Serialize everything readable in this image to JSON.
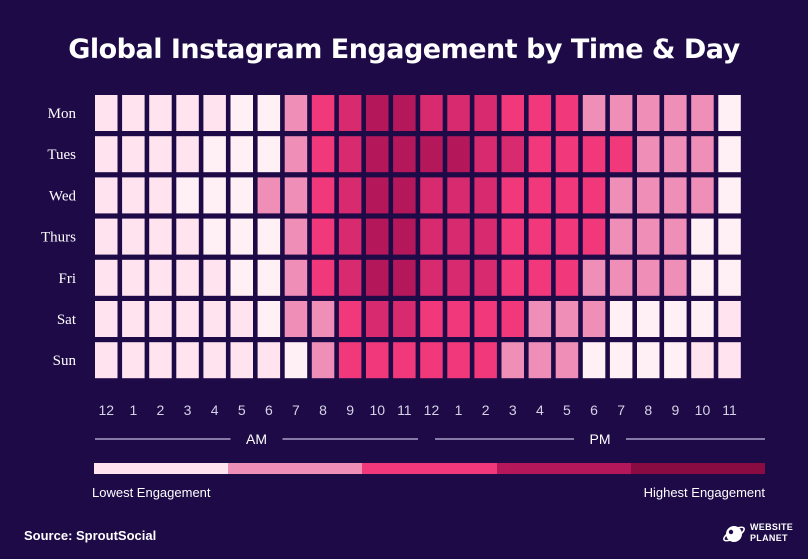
{
  "chart_data": {
    "type": "heatmap",
    "title": "Global Instagram Engagement by Time & Day",
    "rows": [
      "Mon",
      "Tues",
      "Wed",
      "Thurs",
      "Fri",
      "Sat",
      "Sun"
    ],
    "columns": [
      "12",
      "1",
      "2",
      "3",
      "4",
      "5",
      "6",
      "7",
      "8",
      "9",
      "10",
      "11",
      "12",
      "1",
      "2",
      "3",
      "4",
      "5",
      "6",
      "7",
      "8",
      "9",
      "10",
      "11"
    ],
    "period_labels": [
      "AM",
      "PM"
    ],
    "scale_colors": [
      "#ffe4f0",
      "#fff0f6",
      "#ef8fb8",
      "#f0387b",
      "#d82a6e",
      "#b5185a",
      "#8a0a42"
    ],
    "levels": [
      [
        0,
        0,
        0,
        0,
        0,
        1,
        1,
        2,
        3,
        4,
        5,
        5,
        4,
        4,
        4,
        3,
        3,
        3,
        2,
        2,
        2,
        2,
        2,
        1
      ],
      [
        0,
        0,
        0,
        0,
        1,
        1,
        1,
        2,
        3,
        4,
        5,
        5,
        5,
        5,
        4,
        4,
        3,
        3,
        3,
        3,
        2,
        2,
        2,
        1
      ],
      [
        0,
        0,
        0,
        1,
        1,
        1,
        2,
        2,
        3,
        4,
        5,
        5,
        4,
        4,
        4,
        3,
        3,
        3,
        3,
        2,
        2,
        2,
        2,
        1
      ],
      [
        0,
        0,
        0,
        0,
        1,
        1,
        1,
        2,
        3,
        4,
        5,
        5,
        4,
        4,
        4,
        3,
        3,
        3,
        3,
        2,
        2,
        2,
        1,
        1
      ],
      [
        0,
        0,
        0,
        0,
        0,
        1,
        1,
        2,
        3,
        4,
        5,
        5,
        4,
        4,
        4,
        3,
        3,
        3,
        2,
        2,
        2,
        2,
        1,
        1
      ],
      [
        0,
        0,
        0,
        0,
        0,
        0,
        1,
        2,
        2,
        3,
        4,
        4,
        3,
        3,
        3,
        3,
        2,
        2,
        2,
        1,
        1,
        1,
        1,
        0
      ],
      [
        0,
        0,
        0,
        0,
        0,
        0,
        0,
        1,
        2,
        3,
        3,
        3,
        3,
        3,
        3,
        2,
        2,
        2,
        1,
        1,
        1,
        1,
        0,
        0
      ]
    ],
    "legend": {
      "low_label": "Lowest Engagement",
      "high_label": "Highest Engagement",
      "gradient": [
        "#ffe4f0",
        "#ef8fb8",
        "#f0387b",
        "#b5185a",
        "#8a0a42"
      ]
    }
  },
  "footer": {
    "source": "Source: SproutSocial",
    "brand_line1": "WEBSITE",
    "brand_line2": "PLANET"
  },
  "colors": {
    "background": "#1d0a47",
    "divider": "#a9a0c8",
    "tick_text": "#d6d2e6"
  }
}
